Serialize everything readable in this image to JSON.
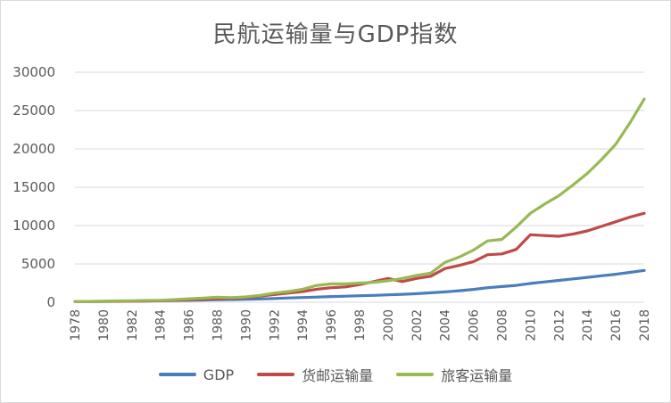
{
  "chart_data": {
    "type": "line",
    "title": "民航运输量与GDP指数",
    "xlabel": "",
    "ylabel": "",
    "ylim": [
      0,
      30000
    ],
    "yticks": [
      0,
      5000,
      10000,
      15000,
      20000,
      25000,
      30000
    ],
    "grid": true,
    "legend_position": "bottom",
    "x": [
      1978,
      1979,
      1980,
      1981,
      1982,
      1983,
      1984,
      1985,
      1986,
      1987,
      1988,
      1989,
      1990,
      1991,
      1992,
      1993,
      1994,
      1995,
      1996,
      1997,
      1998,
      1999,
      2000,
      2001,
      2002,
      2003,
      2004,
      2005,
      2006,
      2007,
      2008,
      2009,
      2010,
      2011,
      2012,
      2013,
      2014,
      2015,
      2016,
      2017,
      2018
    ],
    "xticks": [
      "1978",
      "1980",
      "1982",
      "1984",
      "1986",
      "1988",
      "1990",
      "1992",
      "1994",
      "1996",
      "1998",
      "2000",
      "2002",
      "2004",
      "2006",
      "2008",
      "2010",
      "2012",
      "2014",
      "2016",
      "2018"
    ],
    "series": [
      {
        "name": "GDP",
        "color": "#4a7ebb",
        "values": [
          100,
          110,
          120,
          135,
          150,
          170,
          200,
          230,
          260,
          290,
          330,
          350,
          380,
          430,
          490,
          560,
          620,
          680,
          740,
          790,
          850,
          900,
          970,
          1040,
          1120,
          1230,
          1350,
          1500,
          1680,
          1900,
          2050,
          2200,
          2450,
          2650,
          2850,
          3050,
          3250,
          3450,
          3650,
          3900,
          4150
        ]
      },
      {
        "name": "货邮运输量",
        "color": "#be4b48",
        "values": [
          100,
          100,
          110,
          120,
          140,
          160,
          200,
          260,
          330,
          400,
          470,
          500,
          600,
          800,
          1000,
          1200,
          1400,
          1700,
          1900,
          2000,
          2300,
          2700,
          3100,
          2700,
          3100,
          3400,
          4400,
          4800,
          5300,
          6200,
          6300,
          6900,
          8800,
          8700,
          8600,
          8900,
          9300,
          9900,
          10500,
          11100,
          11600
        ]
      },
      {
        "name": "旅客运输量",
        "color": "#98b954",
        "values": [
          100,
          110,
          130,
          170,
          200,
          230,
          250,
          350,
          450,
          550,
          650,
          600,
          700,
          900,
          1200,
          1400,
          1700,
          2200,
          2400,
          2400,
          2500,
          2600,
          2800,
          3100,
          3500,
          3800,
          5200,
          5900,
          6800,
          8000,
          8200,
          9800,
          11600,
          12800,
          13900,
          15300,
          16800,
          18600,
          20600,
          23400,
          26500
        ]
      }
    ]
  }
}
